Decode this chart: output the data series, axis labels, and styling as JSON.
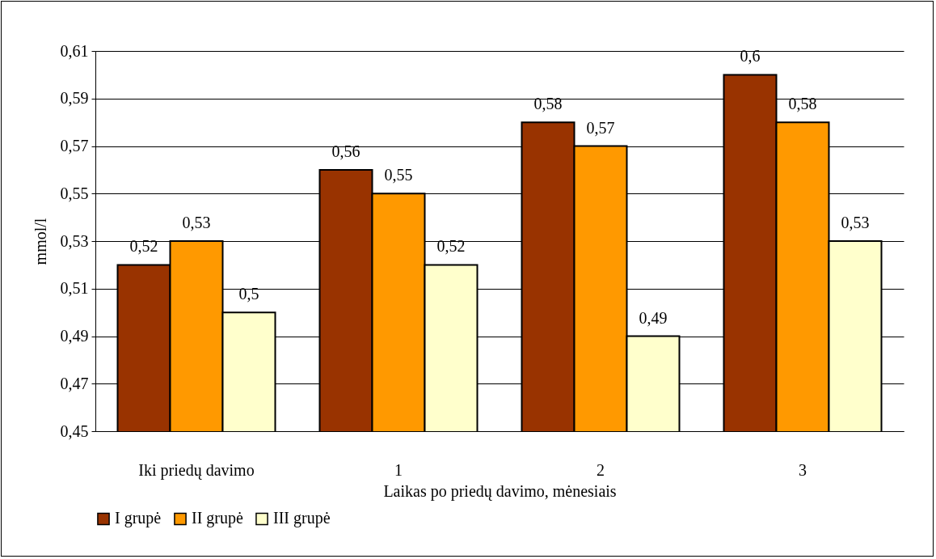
{
  "chart_data": {
    "type": "bar",
    "xlabel": "Laikas po priedų davimo, mėnesiais",
    "ylabel": "mmol/l",
    "categories": [
      "Iki priedų davimo",
      "1",
      "2",
      "3"
    ],
    "series": [
      {
        "name": "I grupė",
        "color": "#993300",
        "values": [
          0.52,
          0.56,
          0.58,
          0.6
        ],
        "value_labels": [
          "0,52",
          "0,56",
          "0,58",
          "0,6"
        ]
      },
      {
        "name": "II grupė",
        "color": "#ff9900",
        "values": [
          0.53,
          0.55,
          0.57,
          0.58
        ],
        "value_labels": [
          "0,53",
          "0,55",
          "0,57",
          "0,58"
        ]
      },
      {
        "name": "III grupė",
        "color": "#ffffcc",
        "values": [
          0.5,
          0.52,
          0.49,
          0.53
        ],
        "value_labels": [
          "0,5",
          "0,52",
          "0,49",
          "0,53"
        ]
      }
    ],
    "ylim": [
      0.45,
      0.61
    ],
    "yticks": [
      {
        "value": 0.45,
        "label": "0,45"
      },
      {
        "value": 0.47,
        "label": "0,47"
      },
      {
        "value": 0.49,
        "label": "0,49"
      },
      {
        "value": 0.51,
        "label": "0,51"
      },
      {
        "value": 0.53,
        "label": "0,53"
      },
      {
        "value": 0.55,
        "label": "0,55"
      },
      {
        "value": 0.57,
        "label": "0,57"
      },
      {
        "value": 0.59,
        "label": "0,59"
      },
      {
        "value": 0.61,
        "label": "0,61"
      }
    ],
    "grid": "y",
    "legend": "bottom"
  }
}
